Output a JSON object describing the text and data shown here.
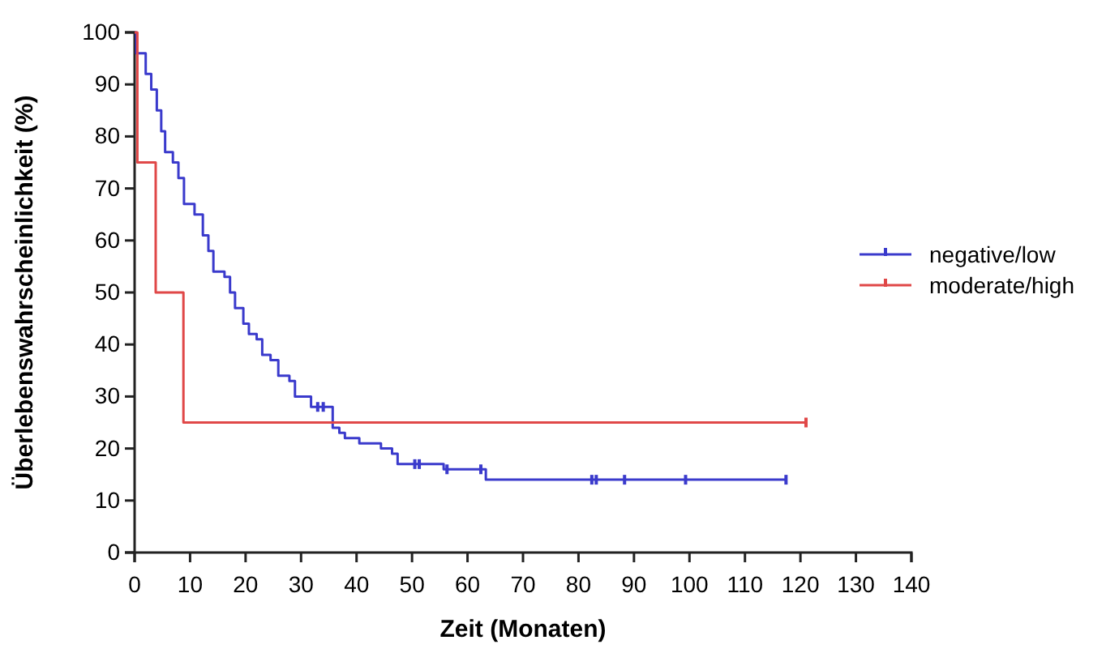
{
  "chart_data": {
    "type": "step",
    "xlabel": "Zeit (Monaten)",
    "ylabel": "Überlebenswahrscheinlichkeit (%)",
    "xlim": [
      0,
      140
    ],
    "xticks": [
      0,
      10,
      20,
      30,
      40,
      50,
      60,
      70,
      80,
      90,
      100,
      110,
      120,
      130,
      140
    ],
    "ylim": [
      0,
      100
    ],
    "yticks": [
      0,
      10,
      20,
      30,
      40,
      50,
      60,
      70,
      80,
      90,
      100
    ],
    "grid": false,
    "legend": "right",
    "series": [
      {
        "name": "negative/low",
        "color": "#3a3acc",
        "x": [
          0,
          0.3,
          2,
          3,
          4,
          4.8,
          5.5,
          6.9,
          7.9,
          8.9,
          10.8,
          12.3,
          13.3,
          14.2,
          16.2,
          17.2,
          18.1,
          19.6,
          20.6,
          22,
          23,
          24.5,
          25.9,
          27.9,
          28.9,
          31.8,
          35.7,
          36.9,
          37.9,
          40.5,
          44.4,
          46.4,
          47.4,
          55.7,
          63.3,
          117.4
        ],
        "values": [
          100,
          96,
          92,
          89,
          85,
          81,
          77,
          75,
          72,
          67,
          65,
          61,
          58,
          54,
          53,
          50,
          47,
          44,
          42,
          41,
          38,
          37,
          34,
          33,
          30,
          28,
          24,
          23,
          22,
          21,
          20,
          19,
          17,
          16,
          14,
          14
        ]
      },
      {
        "name": "moderate/high",
        "color": "#e04848",
        "x": [
          0,
          0.5,
          3.8,
          8.8,
          121
        ],
        "values": [
          100,
          75,
          50,
          25,
          25
        ]
      },
      {
        "type": "scatter",
        "color": "#3a3acc",
        "x": [
          33,
          34,
          50.5,
          51.3,
          56.3,
          62.4,
          82.4,
          83.2,
          88.3,
          99.3,
          117.4
        ],
        "values": [
          28,
          28,
          17,
          17,
          16,
          16,
          14,
          14,
          14,
          14,
          14
        ]
      },
      {
        "type": "scatter",
        "color": "#e04848",
        "x": [
          121
        ],
        "values": [
          25
        ]
      }
    ]
  }
}
